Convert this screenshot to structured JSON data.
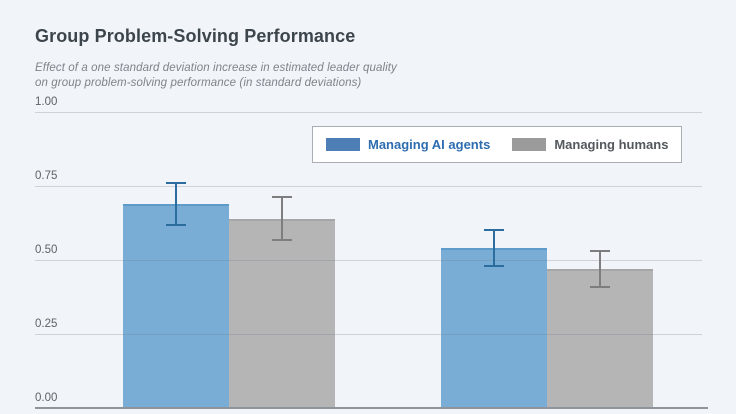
{
  "page": {
    "background": "#f1f5f9"
  },
  "header": {
    "title": "Group Problem-Solving Performance",
    "subtitle_line1": "Effect of a one standard deviation increase in estimated leader quality",
    "subtitle_line2": "on group problem-solving performance (in standard deviations)"
  },
  "legend": {
    "items": [
      {
        "label": "Managing AI agents",
        "swatch_color": "#4d7eb5",
        "text_color": "#2e6db0"
      },
      {
        "label": "Managing humans",
        "swatch_color": "#9b9b9b",
        "text_color": "#54585d"
      }
    ]
  },
  "chart_data": {
    "type": "bar",
    "title": "Group Problem-Solving Performance",
    "subtitle": "Effect of a one standard deviation increase in estimated leader quality on group problem-solving performance (in standard deviations)",
    "categories": [
      "",
      ""
    ],
    "series": [
      {
        "name": "Managing AI agents",
        "values": [
          0.69,
          0.54
        ],
        "errors": [
          0.075,
          0.065
        ],
        "bar_color": "#79add5",
        "bar_edge_color": "#5f9bc9",
        "error_color": "#2b6d9f"
      },
      {
        "name": "Managing humans",
        "values": [
          0.64,
          0.47
        ],
        "errors": [
          0.075,
          0.065
        ],
        "bar_color": "#b5b5b5",
        "bar_edge_color": "#a6a6a6",
        "error_color": "#7e7e7e"
      }
    ],
    "xlabel": "",
    "ylabel": "",
    "ylim": [
      0,
      1
    ],
    "yticks": [
      "1.00",
      "0.75",
      "0.50",
      "0.25",
      "0.00"
    ],
    "ytick_values": [
      1.0,
      0.75,
      0.5,
      0.25,
      0.0
    ],
    "grid": true,
    "legend_position": "top-right-inside",
    "error_bars": true
  }
}
